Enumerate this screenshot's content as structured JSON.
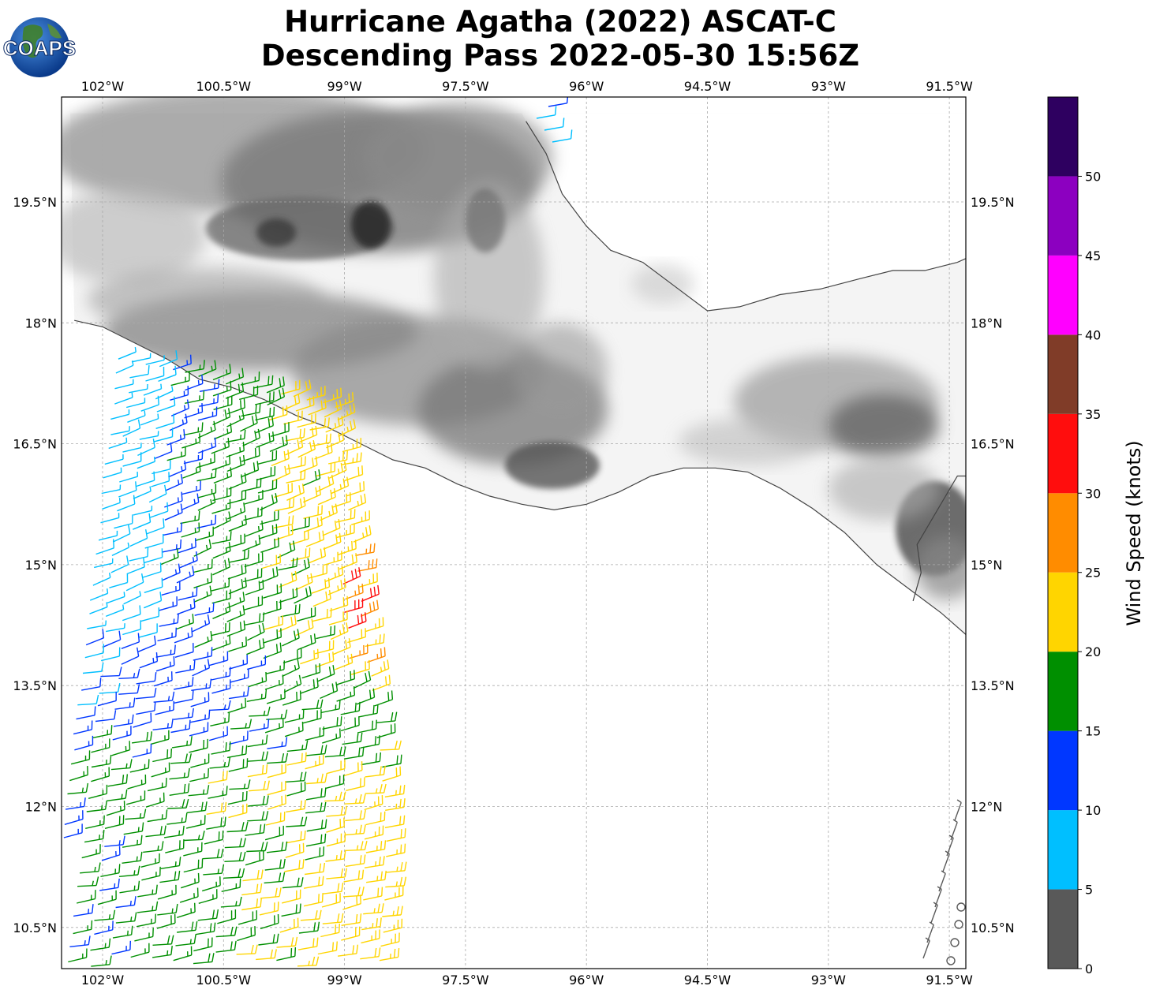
{
  "title": {
    "line1": "Hurricane Agatha (2022) ASCAT-C",
    "line2": "Descending Pass 2022-05-30 15:56Z"
  },
  "logo": {
    "text": "COAPS"
  },
  "map": {
    "lon_range": [
      -102.35,
      -90.85
    ],
    "lat_range": [
      9.7,
      20.5
    ],
    "gridlines": true,
    "lon_ticks": [
      {
        "value": -102.0,
        "label": "102°W"
      },
      {
        "value": -100.5,
        "label": "100.5°W"
      },
      {
        "value": -99.0,
        "label": "99°W"
      },
      {
        "value": -97.5,
        "label": "97.5°W"
      },
      {
        "value": -96.0,
        "label": "96°W"
      },
      {
        "value": -94.5,
        "label": "94.5°W"
      },
      {
        "value": -93.0,
        "label": "93°W"
      },
      {
        "value": -91.5,
        "label": "91.5°W"
      }
    ],
    "lat_ticks": [
      {
        "value": 19.5,
        "label": "19.5°N"
      },
      {
        "value": 18.0,
        "label": "18°N"
      },
      {
        "value": 16.5,
        "label": "16.5°N"
      },
      {
        "value": 15.0,
        "label": "15°N"
      },
      {
        "value": 13.5,
        "label": "13.5°N"
      },
      {
        "value": 12.0,
        "label": "12°N"
      },
      {
        "value": 10.5,
        "label": "10.5°N"
      }
    ],
    "coastline": [
      [
        -102.35,
        18.03
      ],
      [
        -102.0,
        17.95
      ],
      [
        -101.6,
        17.75
      ],
      [
        -101.2,
        17.55
      ],
      [
        -100.8,
        17.3
      ],
      [
        -100.4,
        17.2
      ],
      [
        -100.0,
        17.05
      ],
      [
        -99.6,
        16.85
      ],
      [
        -99.2,
        16.7
      ],
      [
        -98.8,
        16.5
      ],
      [
        -98.4,
        16.3
      ],
      [
        -98.0,
        16.2
      ],
      [
        -97.6,
        16.0
      ],
      [
        -97.2,
        15.85
      ],
      [
        -96.8,
        15.75
      ],
      [
        -96.4,
        15.68
      ],
      [
        -96.0,
        15.75
      ],
      [
        -95.6,
        15.9
      ],
      [
        -95.2,
        16.1
      ],
      [
        -94.8,
        16.2
      ],
      [
        -94.4,
        16.2
      ],
      [
        -94.0,
        16.15
      ],
      [
        -93.6,
        15.95
      ],
      [
        -93.2,
        15.7
      ],
      [
        -92.8,
        15.4
      ],
      [
        -92.4,
        15.0
      ],
      [
        -92.0,
        14.7
      ],
      [
        -91.6,
        14.4
      ],
      [
        -91.2,
        14.05
      ],
      [
        -90.85,
        13.85
      ]
    ],
    "gulf_coast": [
      [
        -96.75,
        20.5
      ],
      [
        -96.5,
        20.1
      ],
      [
        -96.3,
        19.6
      ],
      [
        -96.0,
        19.2
      ],
      [
        -95.7,
        18.9
      ],
      [
        -95.3,
        18.75
      ],
      [
        -94.9,
        18.45
      ],
      [
        -94.5,
        18.15
      ],
      [
        -94.1,
        18.2
      ],
      [
        -93.6,
        18.35
      ],
      [
        -93.1,
        18.42
      ],
      [
        -92.6,
        18.55
      ],
      [
        -92.2,
        18.65
      ],
      [
        -91.8,
        18.65
      ],
      [
        -91.4,
        18.75
      ],
      [
        -90.85,
        19.0
      ]
    ],
    "border": [
      [
        -90.85,
        16.1
      ],
      [
        -91.4,
        16.1
      ],
      [
        -91.9,
        15.25
      ],
      [
        -91.85,
        14.9
      ],
      [
        -91.95,
        14.55
      ]
    ],
    "colorbar": {
      "label": "Wind Speed (knots)",
      "min": 0,
      "max": 55,
      "ticks": [
        0,
        5,
        10,
        15,
        20,
        25,
        30,
        35,
        40,
        45,
        50
      ],
      "bins": [
        {
          "from": 0,
          "to": 5,
          "color": "#595959"
        },
        {
          "from": 5,
          "to": 10,
          "color": "#00bfff"
        },
        {
          "from": 10,
          "to": 15,
          "color": "#0037ff"
        },
        {
          "from": 15,
          "to": 20,
          "color": "#008f00"
        },
        {
          "from": 20,
          "to": 25,
          "color": "#ffd500"
        },
        {
          "from": 25,
          "to": 30,
          "color": "#ff8c00"
        },
        {
          "from": 30,
          "to": 35,
          "color": "#ff0d0d"
        },
        {
          "from": 35,
          "to": 40,
          "color": "#803c28"
        },
        {
          "from": 40,
          "to": 45,
          "color": "#ff00ff"
        },
        {
          "from": 45,
          "to": 50,
          "color": "#8c00c0"
        },
        {
          "from": 50,
          "to": 55,
          "color": "#2e0060"
        }
      ]
    }
  }
}
